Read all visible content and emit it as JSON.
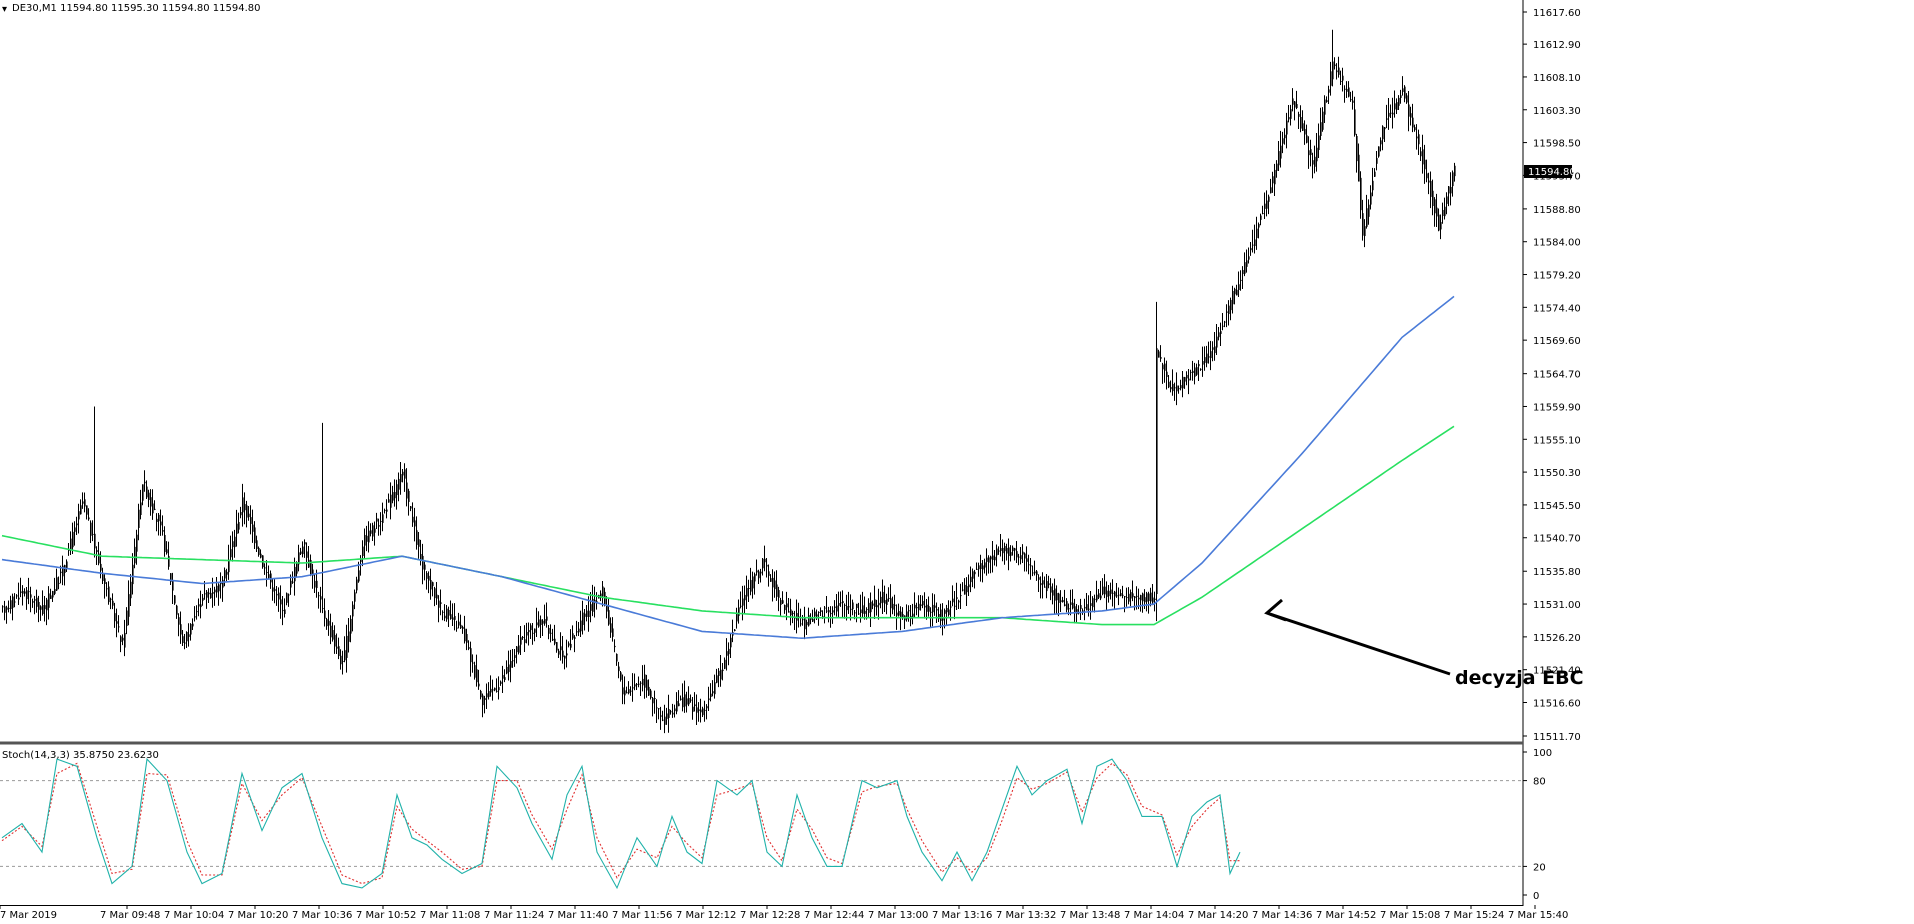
{
  "chart_data": {
    "type": "candlestick",
    "title": "DE30,M1  11594.80 11595.30 11594.80 11594.80",
    "current_price": "11594.80",
    "y_ticks": [
      "11617.60",
      "11612.90",
      "11608.10",
      "11603.30",
      "11598.50",
      "11593.70",
      "11588.80",
      "11584.00",
      "11579.20",
      "11574.40",
      "11569.60",
      "11564.70",
      "11559.90",
      "11555.10",
      "11550.30",
      "11545.50",
      "11540.70",
      "11535.80",
      "11531.00",
      "11526.20",
      "11521.40",
      "11516.60",
      "11511.70"
    ],
    "ylim": [
      11511.7,
      11617.6
    ],
    "x_ticks": [
      "7 Mar 2019",
      "7 Mar 09:48",
      "7 Mar 10:04",
      "7 Mar 10:20",
      "7 Mar 10:36",
      "7 Mar 10:52",
      "7 Mar 11:08",
      "7 Mar 11:24",
      "7 Mar 11:40",
      "7 Mar 11:56",
      "7 Mar 12:12",
      "7 Mar 12:28",
      "7 Mar 12:44",
      "7 Mar 13:00",
      "7 Mar 13:16",
      "7 Mar 13:32",
      "7 Mar 13:48",
      "7 Mar 14:04",
      "7 Mar 14:20",
      "7 Mar 14:36",
      "7 Mar 14:52",
      "7 Mar 15:08",
      "7 Mar 15:24",
      "7 Mar 15:40"
    ],
    "price_path": [
      [
        0,
        11530
      ],
      [
        10,
        11533
      ],
      [
        20,
        11530
      ],
      [
        30,
        11536
      ],
      [
        40,
        11546
      ],
      [
        50,
        11535
      ],
      [
        60,
        11525
      ],
      [
        70,
        11549
      ],
      [
        80,
        11541
      ],
      [
        90,
        11525
      ],
      [
        100,
        11532
      ],
      [
        110,
        11534
      ],
      [
        120,
        11546
      ],
      [
        130,
        11537
      ],
      [
        140,
        11530
      ],
      [
        150,
        11540
      ],
      [
        160,
        11530
      ],
      [
        170,
        11522
      ],
      [
        180,
        11540
      ],
      [
        190,
        11544
      ],
      [
        200,
        11550
      ],
      [
        210,
        11536
      ],
      [
        220,
        11530
      ],
      [
        230,
        11527
      ],
      [
        240,
        11517
      ],
      [
        250,
        11520
      ],
      [
        260,
        11526
      ],
      [
        270,
        11529
      ],
      [
        280,
        11523
      ],
      [
        290,
        11529
      ],
      [
        300,
        11533
      ],
      [
        310,
        11518
      ],
      [
        320,
        11520
      ],
      [
        330,
        11514
      ],
      [
        340,
        11517
      ],
      [
        350,
        11515
      ],
      [
        360,
        11522
      ],
      [
        370,
        11532
      ],
      [
        380,
        11537
      ],
      [
        390,
        11531
      ],
      [
        400,
        11528
      ],
      [
        410,
        11530
      ],
      [
        420,
        11531
      ],
      [
        430,
        11530
      ],
      [
        440,
        11532
      ],
      [
        450,
        11529
      ],
      [
        460,
        11531
      ],
      [
        470,
        11529
      ],
      [
        480,
        11533
      ],
      [
        490,
        11537
      ],
      [
        500,
        11539
      ],
      [
        510,
        11538
      ],
      [
        520,
        11534
      ],
      [
        530,
        11531
      ],
      [
        540,
        11530
      ],
      [
        550,
        11533
      ],
      [
        560,
        11532
      ],
      [
        570,
        11532
      ],
      [
        576,
        11532
      ],
      [
        577,
        11568
      ],
      [
        585,
        11562
      ],
      [
        595,
        11565
      ],
      [
        605,
        11568
      ],
      [
        615,
        11576
      ],
      [
        625,
        11584
      ],
      [
        635,
        11593
      ],
      [
        645,
        11605
      ],
      [
        655,
        11595
      ],
      [
        665,
        11610
      ],
      [
        675,
        11604
      ],
      [
        680,
        11585
      ],
      [
        690,
        11601
      ],
      [
        700,
        11606
      ],
      [
        710,
        11596
      ],
      [
        718,
        11586
      ],
      [
        726,
        11595
      ]
    ],
    "ma_blue": [
      [
        0,
        11537.5
      ],
      [
        50,
        11535.5
      ],
      [
        100,
        11534
      ],
      [
        150,
        11535
      ],
      [
        200,
        11538
      ],
      [
        250,
        11535
      ],
      [
        300,
        11531
      ],
      [
        350,
        11527
      ],
      [
        400,
        11526
      ],
      [
        450,
        11527
      ],
      [
        500,
        11529
      ],
      [
        550,
        11530
      ],
      [
        576,
        11531
      ],
      [
        600,
        11537
      ],
      [
        650,
        11553
      ],
      [
        700,
        11570
      ],
      [
        726,
        11576
      ]
    ],
    "ma_green": [
      [
        0,
        11541
      ],
      [
        50,
        11538
      ],
      [
        100,
        11537.5
      ],
      [
        150,
        11537
      ],
      [
        200,
        11538
      ],
      [
        250,
        11535
      ],
      [
        300,
        11532
      ],
      [
        350,
        11530
      ],
      [
        400,
        11529
      ],
      [
        450,
        11529
      ],
      [
        500,
        11529
      ],
      [
        550,
        11528
      ],
      [
        576,
        11528
      ],
      [
        600,
        11532
      ],
      [
        650,
        11542
      ],
      [
        700,
        11552
      ],
      [
        726,
        11557
      ]
    ],
    "stochastic": {
      "label": "Stoch(14,3,3) 35.8750 23.6230",
      "levels": [
        "100",
        "80",
        "20",
        "0"
      ],
      "ylim": [
        0,
        100
      ],
      "k_path": [
        [
          0,
          40
        ],
        [
          20,
          50
        ],
        [
          40,
          30
        ],
        [
          55,
          95
        ],
        [
          75,
          90
        ],
        [
          95,
          40
        ],
        [
          110,
          8
        ],
        [
          130,
          20
        ],
        [
          145,
          95
        ],
        [
          165,
          80
        ],
        [
          185,
          30
        ],
        [
          200,
          8
        ],
        [
          220,
          15
        ],
        [
          240,
          85
        ],
        [
          260,
          45
        ],
        [
          280,
          75
        ],
        [
          300,
          85
        ],
        [
          320,
          40
        ],
        [
          340,
          8
        ],
        [
          360,
          5
        ],
        [
          380,
          15
        ],
        [
          395,
          70
        ],
        [
          410,
          40
        ],
        [
          425,
          35
        ],
        [
          440,
          25
        ],
        [
          460,
          15
        ],
        [
          480,
          22
        ],
        [
          495,
          90
        ],
        [
          515,
          75
        ],
        [
          530,
          50
        ],
        [
          550,
          25
        ],
        [
          565,
          70
        ],
        [
          580,
          90
        ],
        [
          595,
          30
        ],
        [
          615,
          5
        ],
        [
          635,
          40
        ],
        [
          655,
          20
        ],
        [
          670,
          55
        ],
        [
          685,
          30
        ],
        [
          700,
          22
        ],
        [
          715,
          80
        ],
        [
          735,
          70
        ],
        [
          750,
          80
        ],
        [
          765,
          30
        ],
        [
          780,
          20
        ],
        [
          795,
          70
        ],
        [
          810,
          40
        ],
        [
          825,
          20
        ],
        [
          840,
          20
        ],
        [
          860,
          80
        ],
        [
          875,
          75
        ],
        [
          895,
          80
        ],
        [
          905,
          55
        ],
        [
          920,
          30
        ],
        [
          940,
          10
        ],
        [
          955,
          30
        ],
        [
          970,
          10
        ],
        [
          985,
          30
        ],
        [
          1000,
          60
        ],
        [
          1015,
          90
        ],
        [
          1030,
          70
        ],
        [
          1045,
          80
        ],
        [
          1065,
          88
        ],
        [
          1080,
          50
        ],
        [
          1095,
          90
        ],
        [
          1110,
          95
        ],
        [
          1125,
          80
        ],
        [
          1140,
          55
        ],
        [
          1160,
          55
        ],
        [
          1175,
          20
        ],
        [
          1190,
          55
        ],
        [
          1205,
          65
        ],
        [
          1218,
          70
        ],
        [
          1228,
          15
        ],
        [
          1238,
          30
        ]
      ],
      "d_path": [
        [
          0,
          38
        ],
        [
          20,
          48
        ],
        [
          40,
          34
        ],
        [
          55,
          85
        ],
        [
          75,
          92
        ],
        [
          95,
          48
        ],
        [
          110,
          15
        ],
        [
          130,
          18
        ],
        [
          145,
          85
        ],
        [
          165,
          84
        ],
        [
          185,
          38
        ],
        [
          200,
          14
        ],
        [
          220,
          14
        ],
        [
          240,
          78
        ],
        [
          260,
          52
        ],
        [
          280,
          70
        ],
        [
          300,
          82
        ],
        [
          320,
          48
        ],
        [
          340,
          14
        ],
        [
          360,
          8
        ],
        [
          380,
          12
        ],
        [
          395,
          62
        ],
        [
          410,
          46
        ],
        [
          425,
          38
        ],
        [
          440,
          30
        ],
        [
          460,
          18
        ],
        [
          480,
          20
        ],
        [
          495,
          80
        ],
        [
          515,
          80
        ],
        [
          530,
          56
        ],
        [
          550,
          32
        ],
        [
          565,
          60
        ],
        [
          580,
          84
        ],
        [
          595,
          40
        ],
        [
          615,
          12
        ],
        [
          635,
          32
        ],
        [
          655,
          26
        ],
        [
          670,
          48
        ],
        [
          685,
          36
        ],
        [
          700,
          26
        ],
        [
          715,
          70
        ],
        [
          735,
          74
        ],
        [
          750,
          78
        ],
        [
          765,
          40
        ],
        [
          780,
          24
        ],
        [
          795,
          60
        ],
        [
          810,
          46
        ],
        [
          825,
          26
        ],
        [
          840,
          22
        ],
        [
          860,
          72
        ],
        [
          875,
          76
        ],
        [
          895,
          78
        ],
        [
          905,
          60
        ],
        [
          920,
          38
        ],
        [
          940,
          16
        ],
        [
          955,
          26
        ],
        [
          970,
          16
        ],
        [
          985,
          26
        ],
        [
          1000,
          52
        ],
        [
          1015,
          82
        ],
        [
          1030,
          74
        ],
        [
          1045,
          78
        ],
        [
          1065,
          86
        ],
        [
          1080,
          58
        ],
        [
          1095,
          82
        ],
        [
          1110,
          92
        ],
        [
          1125,
          84
        ],
        [
          1140,
          62
        ],
        [
          1160,
          56
        ],
        [
          1175,
          28
        ],
        [
          1190,
          48
        ],
        [
          1205,
          60
        ],
        [
          1218,
          68
        ],
        [
          1228,
          24
        ],
        [
          1238,
          24
        ]
      ]
    },
    "annotation": "decyzja EBC",
    "colors": {
      "candles": "#000000",
      "ma_blue": "#4a7bd8",
      "ma_green": "#28e060",
      "stoch_main": "#20b2aa",
      "stoch_signal": "#e03030"
    }
  }
}
